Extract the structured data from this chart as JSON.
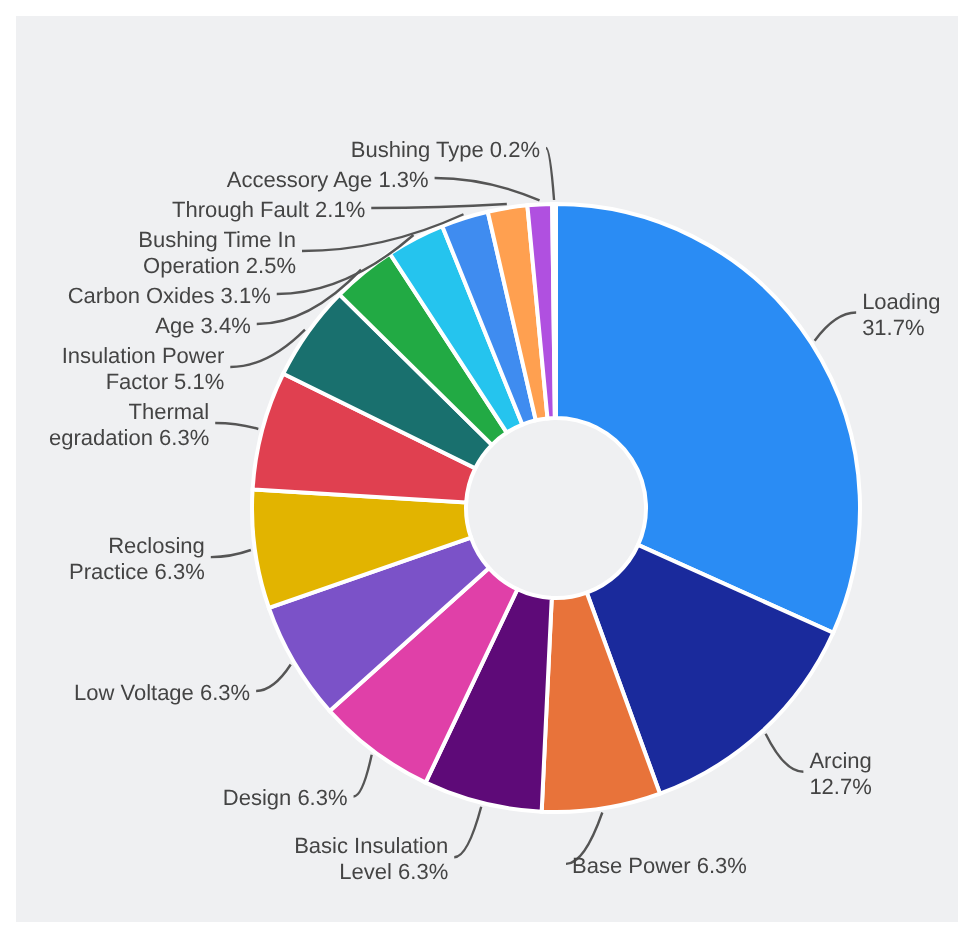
{
  "chart_data": {
    "type": "donut",
    "categories": [
      "Loading",
      "Arcing",
      "Base Power",
      "Basic Insulation Level",
      "Design",
      "Low Voltage",
      "Reclosing Practice",
      "Thermal egradation",
      "Insulation Power Factor",
      "Age",
      "Carbon Oxides",
      "Bushing Time In Operation",
      "Through Fault",
      "Accessory Age",
      "Bushing Type"
    ],
    "values": [
      31.7,
      12.7,
      6.3,
      6.3,
      6.3,
      6.3,
      6.3,
      6.3,
      5.1,
      3.4,
      3.1,
      2.5,
      2.1,
      1.3,
      0.2
    ],
    "value_labels": [
      "31.7%",
      "12.7%",
      "6.3%",
      "6.3%",
      "6.3%",
      "6.3%",
      "6.3%",
      "6.3%",
      "5.1%",
      "3.4%",
      "3.1%",
      "2.5%",
      "2.1%",
      "1.3%",
      "0.2%"
    ],
    "colors": [
      "#2a8cf4",
      "#1a2a9c",
      "#e8733a",
      "#5e0a78",
      "#e040a8",
      "#7b52c8",
      "#e2b400",
      "#e04050",
      "#19706e",
      "#22aa44",
      "#25c4ee",
      "#3f8cf0",
      "#ffa050",
      "#b050e0",
      "#f090c0"
    ],
    "legend": false
  }
}
